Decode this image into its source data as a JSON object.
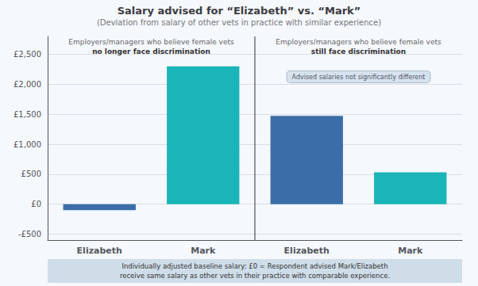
{
  "chart_data": {
    "type": "bar",
    "title": "Salary advised for “Elizabeth” vs. “Mark”",
    "subtitle": "(Deviation from salary of other vets in practice with similar experience)",
    "categories": [
      "Elizabeth",
      "Mark",
      "Elizabeth",
      "Mark"
    ],
    "values": [
      -100,
      2300,
      1475,
      530
    ],
    "colors": [
      "#3b6ea8",
      "#1ab5b8",
      "#3b6ea8",
      "#1ab5b8"
    ],
    "ylim": [
      -600,
      2800
    ],
    "yticks": [
      {
        "value": -500,
        "label": "-£500"
      },
      {
        "value": 0,
        "label": "£0"
      },
      {
        "value": 500,
        "label": "£500"
      },
      {
        "value": 1000,
        "label": "£1,000"
      },
      {
        "value": 1500,
        "label": "£1,500"
      },
      {
        "value": 2000,
        "label": "£2,000"
      },
      {
        "value": 2500,
        "label": "£2,500"
      }
    ],
    "grid": true,
    "annotations": [
      "Employers/managers who believe female vets",
      "no longer face discrimination",
      "Employers/managers who believe female vets",
      "still face discrimination",
      "Advised salaries not significantly different",
      "Individually adjusted baseline salary: £0 = Respondent advised Mark/Elizabeth\nreceive same salary as other vets in their practice with comparable experience."
    ]
  }
}
